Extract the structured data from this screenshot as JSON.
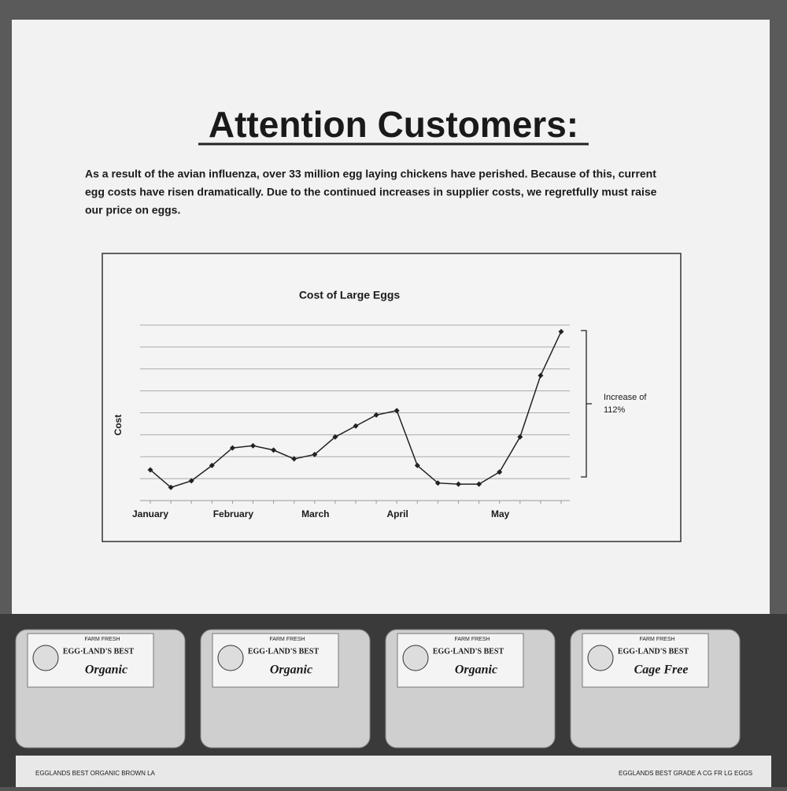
{
  "sign": {
    "heading": "Attention Customers:",
    "paragraph": [
      "As a result of the avian influenza, over 33 million egg laying chickens have perished.  Because of this, current",
      "egg costs have risen dramatically.  Due to the continued increases in supplier costs, we regretfully must raise",
      "our price on eggs."
    ]
  },
  "chart_data": {
    "type": "line",
    "title": "Cost of Large Eggs",
    "y_label": "Cost",
    "categories": [
      "January",
      null,
      null,
      null,
      "February",
      null,
      null,
      null,
      "March",
      null,
      null,
      null,
      "April",
      null,
      null,
      null,
      null,
      "May",
      null,
      null,
      null
    ],
    "series": [
      {
        "color": "#222222",
        "values": [
          0.4,
          -0.4,
          -0.1,
          0.6,
          1.4,
          1.5,
          1.3,
          0.9,
          1.1,
          1.9,
          2.4,
          2.9,
          3.1,
          0.6,
          -0.2,
          -0.25,
          -0.25,
          0.3,
          1.9,
          4.7,
          6.7
        ]
      }
    ],
    "ylim": [
      -1,
      7
    ],
    "yticks": [
      0,
      1,
      2,
      3,
      4,
      5,
      6,
      7
    ],
    "grid": true,
    "annotation": [
      "Increase of",
      "112%"
    ]
  },
  "cartons": [
    {
      "top": "FARM FRESH",
      "brand": "EGG·LAND'S BEST",
      "variety": "Organic"
    },
    {
      "top": "FARM FRESH",
      "brand": "EGG·LAND'S BEST",
      "variety": "Organic"
    },
    {
      "top": "FARM FRESH",
      "brand": "EGG·LAND'S BEST",
      "variety": "Organic"
    },
    {
      "top": "FARM FRESH",
      "brand": "EGG·LAND'S BEST",
      "variety": "Cage Free"
    }
  ],
  "shelf_labels": [
    "EGGLANDS BEST ORGANIC BROWN LA",
    "EGGLANDS BEST GRADE A CG FR LG EGGS"
  ]
}
